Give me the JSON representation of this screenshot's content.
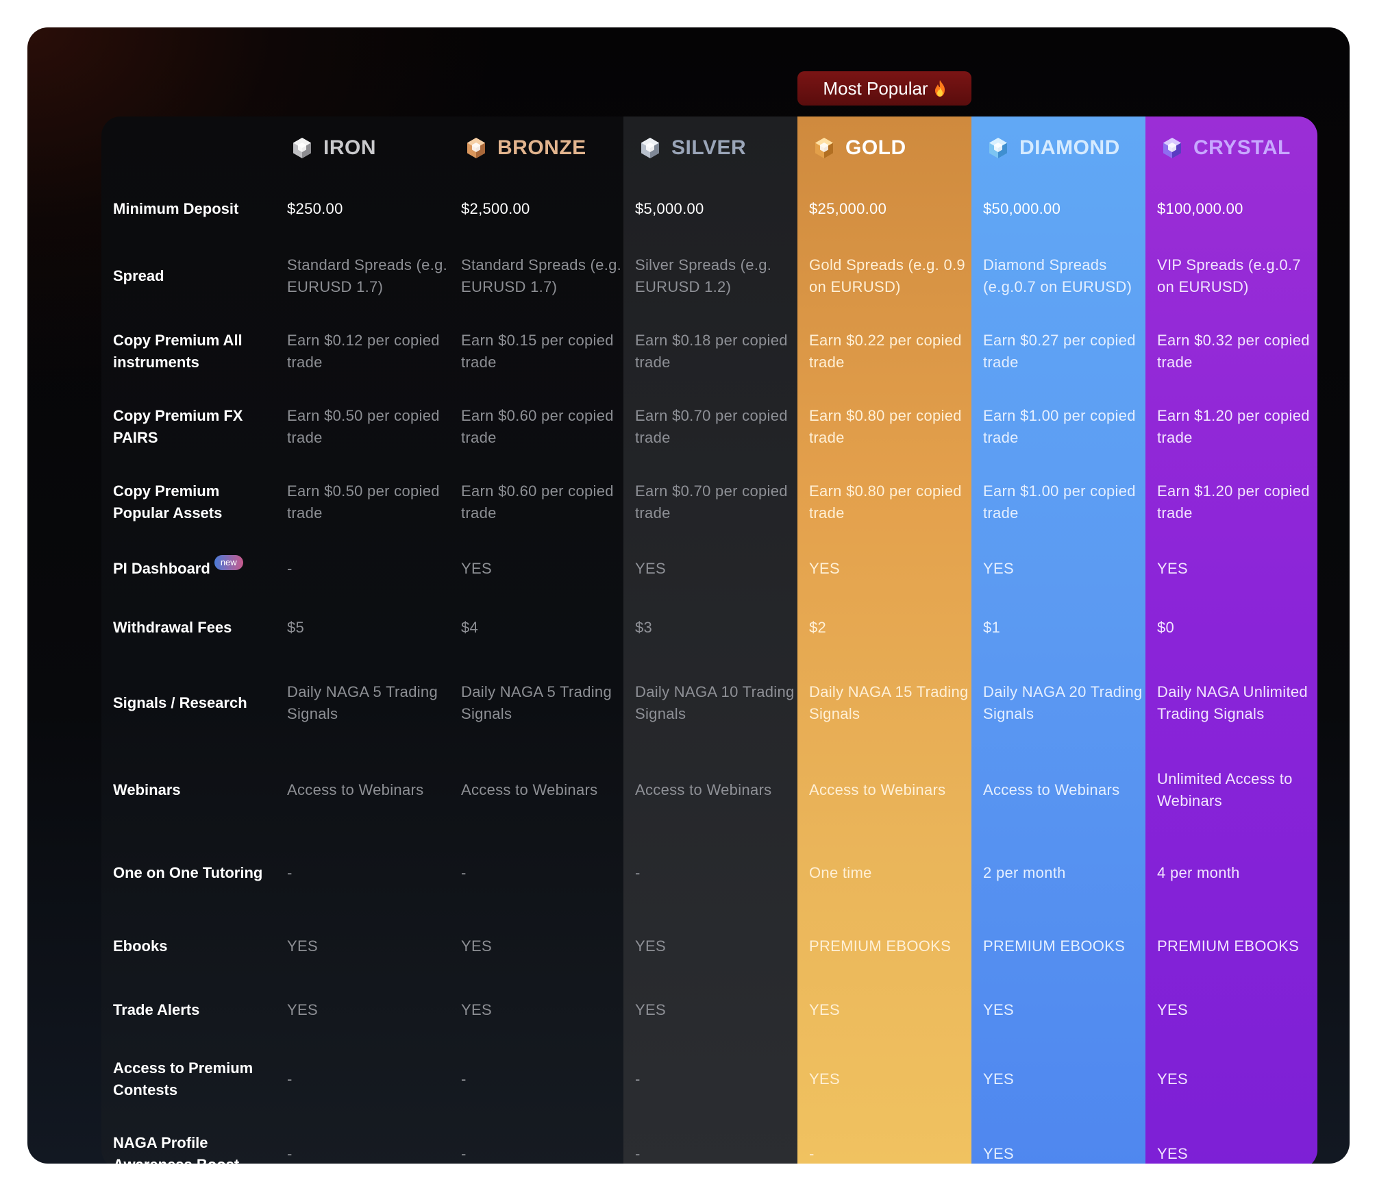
{
  "badge": {
    "label": "Most Popular",
    "icon": "flame-icon"
  },
  "tiers": [
    {
      "name": "IRON",
      "color": "#c9c9cc",
      "icon": "iron-gem-icon"
    },
    {
      "name": "BRONZE",
      "color": "#e2b48e",
      "icon": "bronze-gem-icon"
    },
    {
      "name": "SILVER",
      "color": "#9aa5b8",
      "icon": "silver-gem-icon"
    },
    {
      "name": "GOLD",
      "color": "#ffffff",
      "icon": "gold-gem-icon"
    },
    {
      "name": "DIAMOND",
      "color": "#d6ebff",
      "icon": "diamond-gem-icon"
    },
    {
      "name": "CRYSTAL",
      "color": "#c8a8ff",
      "icon": "crystal-gem-icon"
    }
  ],
  "rows": [
    {
      "label": "Minimum Deposit",
      "values": [
        "$250.00",
        "$2,500.00",
        "$5,000.00",
        "$25,000.00",
        "$50,000.00",
        "$100,000.00"
      ]
    },
    {
      "label": "Spread",
      "values": [
        "Standard Spreads (e.g. EURUSD 1.7)",
        "Standard Spreads (e.g. EURUSD 1.7)",
        "Silver Spreads (e.g. EURUSD 1.2)",
        "Gold Spreads (e.g. 0.9 on EURUSD)",
        "Diamond Spreads (e.g.0.7 on EURUSD)",
        "VIP Spreads (e.g.0.7 on EURUSD)"
      ]
    },
    {
      "label": "Copy Premium All instruments",
      "values": [
        "Earn $0.12 per copied trade",
        "Earn $0.15 per copied trade",
        "Earn $0.18 per copied trade",
        "Earn $0.22 per copied trade",
        "Earn $0.27 per copied trade",
        "Earn $0.32 per copied trade"
      ]
    },
    {
      "label": "Copy Premium FX PAIRS",
      "values": [
        "Earn $0.50 per copied trade",
        "Earn $0.60 per copied trade",
        "Earn $0.70 per copied trade",
        "Earn $0.80 per copied trade",
        "Earn $1.00 per copied trade",
        "Earn $1.20 per copied trade"
      ]
    },
    {
      "label": "Copy Premium Popular Assets",
      "values": [
        "Earn $0.50 per copied trade",
        "Earn $0.60 per copied trade",
        "Earn $0.70 per copied trade",
        "Earn $0.80 per copied trade",
        "Earn $1.00 per copied trade",
        "Earn $1.20 per copied trade"
      ]
    },
    {
      "label": "PI Dashboard",
      "badge": "new",
      "values": [
        "-",
        "YES",
        "YES",
        "YES",
        "YES",
        "YES"
      ]
    },
    {
      "label": "Withdrawal Fees",
      "values": [
        "$5",
        "$4",
        "$3",
        "$2",
        "$1",
        "$0"
      ]
    },
    {
      "label": "Signals / Research",
      "values": [
        "Daily NAGA 5 Trading Signals",
        "Daily NAGA 5 Trading Signals",
        "Daily NAGA 10 Trading Signals",
        "Daily NAGA 15 Trading Signals",
        "Daily NAGA 20 Trading Signals",
        "Daily NAGA Unlimited Trading Signals"
      ]
    },
    {
      "label": "Webinars",
      "values": [
        "Access to Webinars",
        "Access to Webinars",
        "Access to Webinars",
        "Access to Webinars",
        "Access to Webinars",
        "Unlimited Access to Webinars"
      ]
    },
    {
      "label": "One on One Tutoring",
      "values": [
        "-",
        "-",
        "-",
        "One time",
        "2 per month",
        "4 per month"
      ]
    },
    {
      "label": "Ebooks",
      "values": [
        "YES",
        "YES",
        "YES",
        "PREMIUM EBOOKS",
        "PREMIUM EBOOKS",
        "PREMIUM EBOOKS"
      ]
    },
    {
      "label": "Trade Alerts",
      "values": [
        "YES",
        "YES",
        "YES",
        "YES",
        "YES",
        "YES"
      ]
    },
    {
      "label": "Access to Premium Contests",
      "values": [
        "-",
        "-",
        "-",
        "YES",
        "YES",
        "YES"
      ]
    },
    {
      "label": "NAGA Profile Awareness Boost",
      "values": [
        "-",
        "-",
        "-",
        "-",
        "YES",
        "YES"
      ]
    }
  ]
}
